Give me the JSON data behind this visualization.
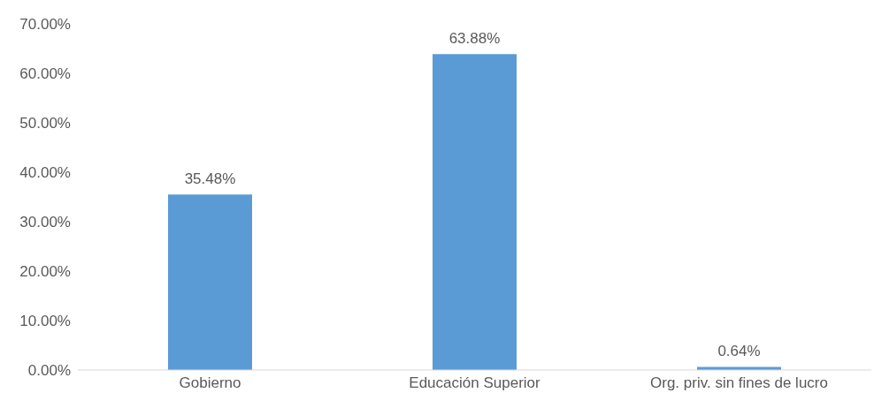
{
  "chart_data": {
    "type": "bar",
    "categories": [
      "Gobierno",
      "Educación Superior",
      "Org. priv. sin fines de lucro"
    ],
    "values": [
      35.48,
      63.88,
      0.64
    ],
    "color": "#5b9bd5",
    "value_labels": [
      "35.48%",
      "63.88%",
      "0.64%"
    ],
    "ylim": [
      0,
      70
    ],
    "yticks": [
      {
        "value": 0,
        "label": "0.00%"
      },
      {
        "value": 10,
        "label": "10.00%"
      },
      {
        "value": 20,
        "label": "20.00%"
      },
      {
        "value": 30,
        "label": "30.00%"
      },
      {
        "value": 40,
        "label": "40.00%"
      },
      {
        "value": 50,
        "label": "50.00%"
      },
      {
        "value": 60,
        "label": "60.00%"
      },
      {
        "value": 70,
        "label": "70.00%"
      }
    ],
    "grid": false
  }
}
